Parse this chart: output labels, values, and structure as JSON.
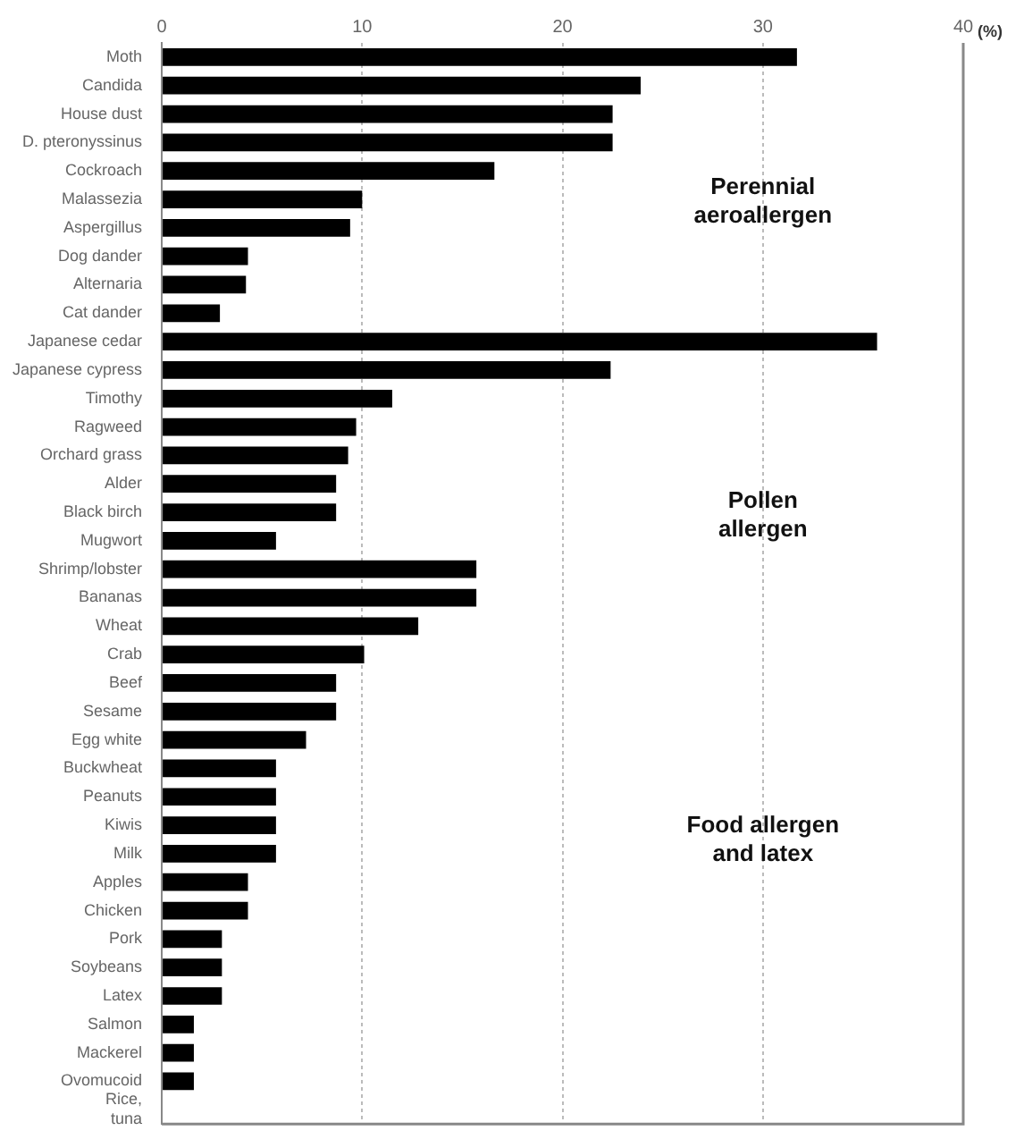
{
  "chart_data": {
    "type": "bar",
    "orientation": "horizontal",
    "xlabel": "(%)",
    "categories": [
      "Moth",
      "Candida",
      "House dust",
      "D. pteronyssinus",
      "Cockroach",
      "Malassezia",
      "Aspergillus",
      "Dog dander",
      "Alternaria",
      "Cat dander",
      "Japanese cedar",
      "Japanese cypress",
      "Timothy",
      "Ragweed",
      "Orchard grass",
      "Alder",
      "Black birch",
      "Mugwort",
      "Shrimp/lobster",
      "Bananas",
      "Wheat",
      "Crab",
      "Beef",
      "Sesame",
      "Egg white",
      "Buckwheat",
      "Peanuts",
      "Kiwis",
      "Milk",
      "Apples",
      "Chicken",
      "Pork",
      "Soybeans",
      "Latex",
      "Salmon",
      "Mackerel",
      "Ovomucoid",
      "Rice, tuna"
    ],
    "values": [
      31.7,
      23.9,
      22.5,
      22.5,
      16.6,
      10.0,
      9.4,
      4.3,
      4.2,
      2.9,
      35.7,
      22.4,
      11.5,
      9.7,
      9.3,
      8.7,
      8.7,
      5.7,
      15.7,
      15.7,
      12.8,
      10.1,
      8.7,
      8.7,
      7.2,
      5.7,
      5.7,
      5.7,
      5.7,
      4.3,
      4.3,
      3.0,
      3.0,
      3.0,
      1.6,
      1.6,
      1.6,
      0
    ],
    "color": "#000000",
    "xlim": [
      0,
      40
    ],
    "xticks": [
      0,
      10,
      20,
      30,
      40
    ],
    "grid": "x",
    "annotations": [
      "Perennial\naeroallergen",
      "Pollen\nallergen",
      "Food allergen\nand latex"
    ]
  }
}
